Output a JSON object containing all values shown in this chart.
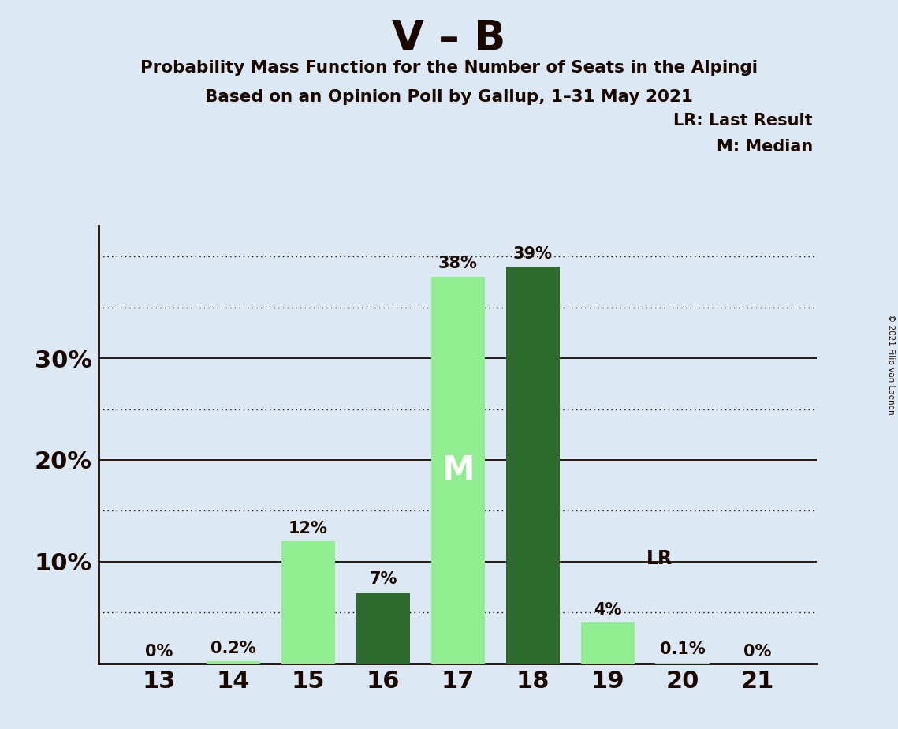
{
  "title": "V – B",
  "subtitle1": "Probability Mass Function for the Number of Seats in the Alpingi",
  "subtitle2": "Based on an Opinion Poll by Gallup, 1–31 May 2021",
  "copyright": "© 2021 Filip van Laenen",
  "seats": [
    13,
    14,
    15,
    16,
    17,
    18,
    19,
    20,
    21
  ],
  "values": [
    0.0,
    0.2,
    12.0,
    7.0,
    38.0,
    39.0,
    4.0,
    0.1,
    0.0
  ],
  "bar_colors": [
    "#90EE90",
    "#90EE90",
    "#90EE90",
    "#2D6A2D",
    "#90EE90",
    "#2D6A2D",
    "#90EE90",
    "#90EE90",
    "#90EE90"
  ],
  "median_seat": 17,
  "lr_seat": 19,
  "background_color": "#dce9f5",
  "axis_color": "#1a0800",
  "ylim_max": 43,
  "solid_yticks": [
    10,
    20,
    30
  ],
  "dotted_yticks": [
    5,
    15,
    25,
    35,
    40
  ],
  "display_yticks": [
    10,
    20,
    30
  ],
  "legend_lr": "LR: Last Result",
  "legend_m": "M: Median",
  "bar_width": 0.72
}
